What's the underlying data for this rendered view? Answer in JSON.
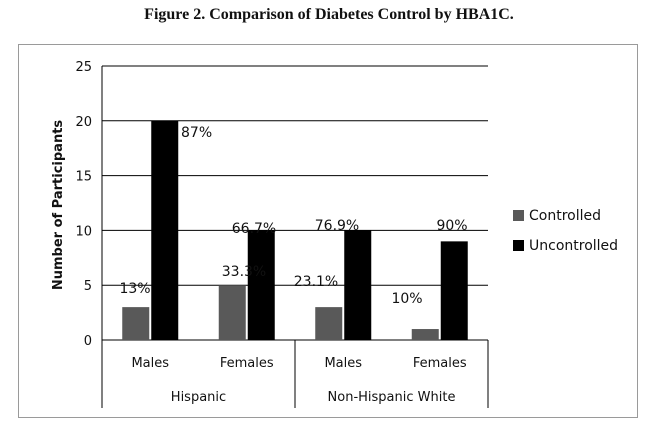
{
  "figure_title": "Figure 2. Comparison of Diabetes Control by HBA1C.",
  "chart_data": {
    "type": "bar",
    "title": "Figure 2. Comparison of Diabetes Control by HBA1C.",
    "xlabel": "",
    "ylabel": "Number of Participants",
    "ylim": [
      0,
      25
    ],
    "yticks": [
      0,
      5,
      10,
      15,
      20,
      25
    ],
    "grid": true,
    "legend_position": "right",
    "groups": [
      {
        "label": "Hispanic",
        "categories": [
          "Males",
          "Females"
        ]
      },
      {
        "label": "Non-Hispanic White",
        "categories": [
          "Males",
          "Females"
        ]
      }
    ],
    "categories": [
      "Males",
      "Females",
      "Males",
      "Females"
    ],
    "series": [
      {
        "name": "Controlled",
        "color": "#595959",
        "values": [
          3,
          5,
          3,
          1
        ],
        "labels": [
          "13%",
          "33.3%",
          "23.1%",
          "10%"
        ]
      },
      {
        "name": "Uncontrolled",
        "color": "#000000",
        "values": [
          20,
          10,
          10,
          9
        ],
        "labels": [
          "87%",
          "66.7%",
          "76.9%",
          "90%"
        ]
      }
    ]
  }
}
